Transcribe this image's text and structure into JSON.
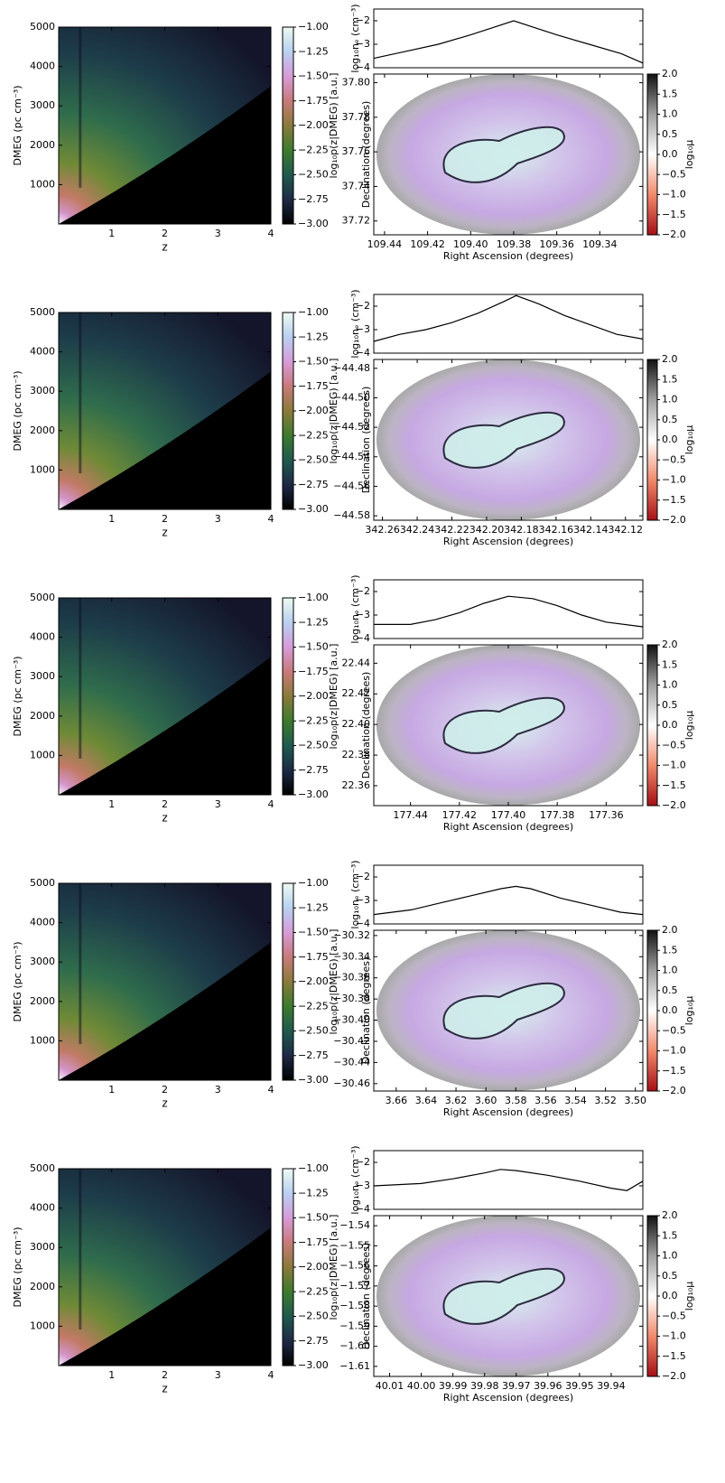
{
  "chart_data": [
    {
      "type": "heatmap",
      "xlabel": "z",
      "ylabel": "DMEG (pc cm⁻³)",
      "colorbar_label": "log₁₀p(z|DMEG) [a.u.]",
      "xlim": [
        0,
        4
      ],
      "xticks": [
        1,
        2,
        3,
        4
      ],
      "ylim": [
        0,
        5000
      ],
      "yticks": [
        1000,
        2000,
        3000,
        4000,
        5000
      ],
      "clim": [
        -3,
        -1
      ],
      "cticks": [
        {
          "value": -1,
          "label": "−1.00"
        },
        {
          "value": -1.25,
          "label": "−1.25"
        },
        {
          "value": -1.5,
          "label": "−1.50"
        },
        {
          "value": -1.75,
          "label": "−1.75"
        },
        {
          "value": -2,
          "label": "−2.00"
        },
        {
          "value": -2.25,
          "label": "−2.25"
        },
        {
          "value": -2.5,
          "label": "−2.50"
        },
        {
          "value": -2.75,
          "label": "−2.75"
        },
        {
          "value": -3,
          "label": "−3.00"
        }
      ]
    },
    {
      "type": "map",
      "profile_ylabel": "log₁₀nₑ (cm⁻³)",
      "profile_ylim": [
        -4,
        -1.5
      ],
      "profile_yticks": [
        {
          "value": -2,
          "label": "−2"
        },
        {
          "value": -3,
          "label": "−3"
        },
        {
          "value": -4,
          "label": "−4"
        }
      ],
      "profile": {
        "x": [
          109.445,
          109.43,
          109.415,
          109.4,
          109.39,
          109.38,
          109.37,
          109.36,
          109.345,
          109.33,
          109.32
        ],
        "values": [
          -3.6,
          -3.3,
          -3.0,
          -2.6,
          -2.3,
          -2.0,
          -2.3,
          -2.6,
          -3.0,
          -3.4,
          -3.8
        ]
      },
      "xlabel": "Right Ascension (degrees)",
      "ylabel": "Declination (degrees)",
      "xlim": [
        109.445,
        109.32
      ],
      "xticks": [
        109.44,
        109.42,
        {
          "value": 109.4,
          "label": "109.40"
        },
        109.38,
        109.36,
        109.34
      ],
      "ylim": [
        37.712,
        37.805
      ],
      "yticks": [
        37.72,
        37.74,
        37.76,
        37.78,
        {
          "value": 37.8,
          "label": "37.80"
        }
      ],
      "colorbar_label": "log₁₀μ",
      "clim": [
        -2,
        2
      ],
      "cticks": [
        {
          "value": 2,
          "label": "2.0"
        },
        1.5,
        {
          "value": 1,
          "label": "1.0"
        },
        0.5,
        {
          "value": 0,
          "label": "0.0"
        },
        {
          "value": -0.5,
          "label": "−0.5"
        },
        {
          "value": -1,
          "label": "−1.0"
        },
        {
          "value": -1.5,
          "label": "−1.5"
        },
        {
          "value": -2,
          "label": "−2.0"
        }
      ]
    },
    {
      "type": "heatmap",
      "xlabel": "z",
      "ylabel": "DMEG (pc cm⁻³)",
      "colorbar_label": "log₁₀p(z|DMEG) [a.u.]",
      "xlim": [
        0,
        4
      ],
      "xticks": [
        1,
        2,
        3,
        4
      ],
      "ylim": [
        0,
        5000
      ],
      "yticks": [
        1000,
        2000,
        3000,
        4000,
        5000
      ],
      "clim": [
        -3,
        -1
      ],
      "cticks": [
        {
          "value": -1,
          "label": "−1.00"
        },
        {
          "value": -1.25,
          "label": "−1.25"
        },
        {
          "value": -1.5,
          "label": "−1.50"
        },
        {
          "value": -1.75,
          "label": "−1.75"
        },
        {
          "value": -2,
          "label": "−2.00"
        },
        {
          "value": -2.25,
          "label": "−2.25"
        },
        {
          "value": -2.5,
          "label": "−2.50"
        },
        {
          "value": -2.75,
          "label": "−2.75"
        },
        {
          "value": -3,
          "label": "−3.00"
        }
      ]
    },
    {
      "type": "map",
      "profile_ylabel": "log₁₀nₑ (cm⁻³)",
      "profile_ylim": [
        -4,
        -1.5
      ],
      "profile_yticks": [
        {
          "value": -2,
          "label": "−2"
        },
        {
          "value": -3,
          "label": "−3"
        },
        {
          "value": -4,
          "label": "−4"
        }
      ],
      "profile": {
        "x": [
          342.265,
          342.25,
          342.235,
          342.22,
          342.205,
          342.19,
          342.183,
          342.17,
          342.155,
          342.14,
          342.125,
          342.11
        ],
        "values": [
          -3.5,
          -3.2,
          -3.0,
          -2.7,
          -2.3,
          -1.8,
          -1.55,
          -1.9,
          -2.4,
          -2.8,
          -3.2,
          -3.4
        ]
      },
      "xlabel": "Right Ascension (degrees)",
      "ylabel": "Declination (degrees)",
      "xlim": [
        342.265,
        342.11
      ],
      "xticks": [
        342.26,
        342.24,
        342.22,
        {
          "value": 342.2,
          "label": "342.20"
        },
        342.18,
        342.16,
        342.14,
        342.12
      ],
      "ylim": [
        -44.583,
        -44.474
      ],
      "yticks": [
        {
          "value": -44.48,
          "label": "−44.48"
        },
        {
          "value": -44.5,
          "label": "−44.50"
        },
        {
          "value": -44.52,
          "label": "−44.52"
        },
        {
          "value": -44.54,
          "label": "−44.54"
        },
        {
          "value": -44.56,
          "label": "−44.56"
        },
        {
          "value": -44.58,
          "label": "−44.58"
        }
      ],
      "colorbar_label": "log₁₀μ",
      "clim": [
        -2,
        2
      ],
      "cticks": [
        {
          "value": 2,
          "label": "2.0"
        },
        1.5,
        {
          "value": 1,
          "label": "1.0"
        },
        0.5,
        {
          "value": 0,
          "label": "0.0"
        },
        {
          "value": -0.5,
          "label": "−0.5"
        },
        {
          "value": -1,
          "label": "−1.0"
        },
        {
          "value": -1.5,
          "label": "−1.5"
        },
        {
          "value": -2,
          "label": "−2.0"
        }
      ]
    },
    {
      "type": "heatmap",
      "xlabel": "z",
      "ylabel": "DMEG (pc cm⁻³)",
      "colorbar_label": "log₁₀p(z|DMEG) [a.u.]",
      "xlim": [
        0,
        4
      ],
      "xticks": [
        1,
        2,
        3,
        4
      ],
      "ylim": [
        0,
        5000
      ],
      "yticks": [
        1000,
        2000,
        3000,
        4000,
        5000
      ],
      "clim": [
        -3,
        -1
      ],
      "cticks": [
        {
          "value": -1,
          "label": "−1.00"
        },
        {
          "value": -1.25,
          "label": "−1.25"
        },
        {
          "value": -1.5,
          "label": "−1.50"
        },
        {
          "value": -1.75,
          "label": "−1.75"
        },
        {
          "value": -2,
          "label": "−2.00"
        },
        {
          "value": -2.25,
          "label": "−2.25"
        },
        {
          "value": -2.5,
          "label": "−2.50"
        },
        {
          "value": -2.75,
          "label": "−2.75"
        },
        {
          "value": -3,
          "label": "−3.00"
        }
      ]
    },
    {
      "type": "map",
      "profile_ylabel": "log₁₀nₑ (cm⁻³)",
      "profile_ylim": [
        -4,
        -1.5
      ],
      "profile_yticks": [
        {
          "value": -2,
          "label": "−2"
        },
        {
          "value": -3,
          "label": "−3"
        },
        {
          "value": -4,
          "label": "−4"
        }
      ],
      "profile": {
        "x": [
          177.455,
          177.44,
          177.43,
          177.42,
          177.41,
          177.4,
          177.39,
          177.38,
          177.37,
          177.36,
          177.345
        ],
        "values": [
          -3.4,
          -3.4,
          -3.2,
          -2.9,
          -2.5,
          -2.2,
          -2.3,
          -2.6,
          -3.0,
          -3.3,
          -3.5
        ]
      },
      "xlabel": "Right Ascension (degrees)",
      "ylabel": "Declination (degrees)",
      "xlim": [
        177.455,
        177.345
      ],
      "xticks": [
        177.44,
        177.42,
        {
          "value": 177.4,
          "label": "177.40"
        },
        177.38,
        177.36
      ],
      "ylim": [
        22.347,
        22.452
      ],
      "yticks": [
        22.36,
        22.38,
        {
          "value": 22.4,
          "label": "22.40"
        },
        22.42,
        22.44
      ],
      "colorbar_label": "log₁₀μ",
      "clim": [
        -2,
        2
      ],
      "cticks": [
        {
          "value": 2,
          "label": "2.0"
        },
        1.5,
        {
          "value": 1,
          "label": "1.0"
        },
        0.5,
        {
          "value": 0,
          "label": "0.0"
        },
        {
          "value": -0.5,
          "label": "−0.5"
        },
        {
          "value": -1,
          "label": "−1.0"
        },
        {
          "value": -1.5,
          "label": "−1.5"
        },
        {
          "value": -2,
          "label": "−2.0"
        }
      ]
    },
    {
      "type": "heatmap",
      "xlabel": "z",
      "ylabel": "DMEG (pc cm⁻³)",
      "colorbar_label": "log₁₀p(z|DMEG) [a.u.]",
      "xlim": [
        0,
        4
      ],
      "xticks": [
        1,
        2,
        3,
        4
      ],
      "ylim": [
        0,
        5000
      ],
      "yticks": [
        1000,
        2000,
        3000,
        4000,
        5000
      ],
      "clim": [
        -3,
        -1
      ],
      "cticks": [
        {
          "value": -1,
          "label": "−1.00"
        },
        {
          "value": -1.25,
          "label": "−1.25"
        },
        {
          "value": -1.5,
          "label": "−1.50"
        },
        {
          "value": -1.75,
          "label": "−1.75"
        },
        {
          "value": -2,
          "label": "−2.00"
        },
        {
          "value": -2.25,
          "label": "−2.25"
        },
        {
          "value": -2.5,
          "label": "−2.50"
        },
        {
          "value": -2.75,
          "label": "−2.75"
        },
        {
          "value": -3,
          "label": "−3.00"
        }
      ]
    },
    {
      "type": "map",
      "profile_ylabel": "log₁₀nₑ (cm⁻³)",
      "profile_ylim": [
        -4,
        -1.5
      ],
      "profile_yticks": [
        {
          "value": -2,
          "label": "−2"
        },
        {
          "value": -3,
          "label": "−3"
        },
        {
          "value": -4,
          "label": "−4"
        }
      ],
      "profile": {
        "x": [
          3.675,
          3.65,
          3.63,
          3.61,
          3.59,
          3.58,
          3.57,
          3.55,
          3.53,
          3.51,
          3.495
        ],
        "values": [
          -3.6,
          -3.4,
          -3.1,
          -2.8,
          -2.5,
          -2.4,
          -2.5,
          -2.9,
          -3.2,
          -3.5,
          -3.6
        ]
      },
      "xlabel": "Right Ascension (degrees)",
      "ylabel": "Declination (degrees)",
      "xlim": [
        3.675,
        3.495
      ],
      "xticks": [
        3.66,
        3.64,
        3.62,
        {
          "value": 3.6,
          "label": "3.60"
        },
        3.58,
        3.56,
        3.54,
        3.52,
        {
          "value": 3.5,
          "label": "3.50"
        }
      ],
      "ylim": [
        -30.467,
        -30.315
      ],
      "yticks": [
        {
          "value": -30.32,
          "label": "−30.32"
        },
        {
          "value": -30.34,
          "label": "−30.34"
        },
        {
          "value": -30.36,
          "label": "−30.36"
        },
        {
          "value": -30.38,
          "label": "−30.38"
        },
        {
          "value": -30.4,
          "label": "−30.40"
        },
        {
          "value": -30.42,
          "label": "−30.42"
        },
        {
          "value": -30.44,
          "label": "−30.44"
        },
        {
          "value": -30.46,
          "label": "−30.46"
        }
      ],
      "colorbar_label": "log₁₀μ",
      "clim": [
        -2,
        2
      ],
      "cticks": [
        {
          "value": 2,
          "label": "2.0"
        },
        1.5,
        {
          "value": 1,
          "label": "1.0"
        },
        0.5,
        {
          "value": 0,
          "label": "0.0"
        },
        {
          "value": -0.5,
          "label": "−0.5"
        },
        {
          "value": -1,
          "label": "−1.0"
        },
        {
          "value": -1.5,
          "label": "−1.5"
        },
        {
          "value": -2,
          "label": "−2.0"
        }
      ]
    },
    {
      "type": "heatmap",
      "xlabel": "z",
      "ylabel": "DMEG (pc cm⁻³)",
      "colorbar_label": "log₁₀p(z|DMEG) [a.u.]",
      "xlim": [
        0,
        4
      ],
      "xticks": [
        1,
        2,
        3,
        4
      ],
      "ylim": [
        0,
        5000
      ],
      "yticks": [
        1000,
        2000,
        3000,
        4000,
        5000
      ],
      "clim": [
        -3,
        -1
      ],
      "cticks": [
        {
          "value": -1,
          "label": "−1.00"
        },
        {
          "value": -1.25,
          "label": "−1.25"
        },
        {
          "value": -1.5,
          "label": "−1.50"
        },
        {
          "value": -1.75,
          "label": "−1.75"
        },
        {
          "value": -2,
          "label": "−2.00"
        },
        {
          "value": -2.25,
          "label": "−2.25"
        },
        {
          "value": -2.5,
          "label": "−2.50"
        },
        {
          "value": -2.75,
          "label": "−2.75"
        },
        {
          "value": -3,
          "label": "−3.00"
        }
      ]
    },
    {
      "type": "map",
      "profile_ylabel": "log₁₀nₑ (cm⁻³)",
      "profile_ylim": [
        -4,
        -1.5
      ],
      "profile_yticks": [
        {
          "value": -2,
          "label": "−2"
        },
        {
          "value": -3,
          "label": "−3"
        },
        {
          "value": -4,
          "label": "−4"
        }
      ],
      "profile": {
        "x": [
          40.015,
          40.0,
          39.99,
          39.98,
          39.975,
          39.97,
          39.96,
          39.95,
          39.94,
          39.935,
          39.93
        ],
        "values": [
          -3.0,
          -2.9,
          -2.7,
          -2.45,
          -2.3,
          -2.35,
          -2.55,
          -2.8,
          -3.1,
          -3.2,
          -2.8
        ]
      },
      "xlabel": "Right Ascension (degrees)",
      "ylabel": "Declination (degrees)",
      "xlim": [
        40.015,
        39.93
      ],
      "xticks": [
        40.01,
        {
          "value": 40,
          "label": "40.00"
        },
        39.99,
        39.98,
        39.97,
        39.96,
        39.95,
        39.94
      ],
      "ylim": [
        -1.615,
        -1.535
      ],
      "yticks": [
        {
          "value": -1.54,
          "label": "−1.54"
        },
        {
          "value": -1.55,
          "label": "−1.55"
        },
        {
          "value": -1.56,
          "label": "−1.56"
        },
        {
          "value": -1.57,
          "label": "−1.57"
        },
        {
          "value": -1.58,
          "label": "−1.58"
        },
        {
          "value": -1.59,
          "label": "−1.59"
        },
        {
          "value": -1.6,
          "label": "−1.60"
        },
        {
          "value": -1.61,
          "label": "−1.61"
        }
      ],
      "colorbar_label": "log₁₀μ",
      "clim": [
        -2,
        2
      ],
      "cticks": [
        {
          "value": 2,
          "label": "2.0"
        },
        1.5,
        {
          "value": 1,
          "label": "1.0"
        },
        0.5,
        {
          "value": 0,
          "label": "0.0"
        },
        {
          "value": -0.5,
          "label": "−0.5"
        },
        {
          "value": -1,
          "label": "−1.0"
        },
        {
          "value": -1.5,
          "label": "−1.5"
        },
        {
          "value": -2,
          "label": "−2.0"
        }
      ]
    }
  ]
}
